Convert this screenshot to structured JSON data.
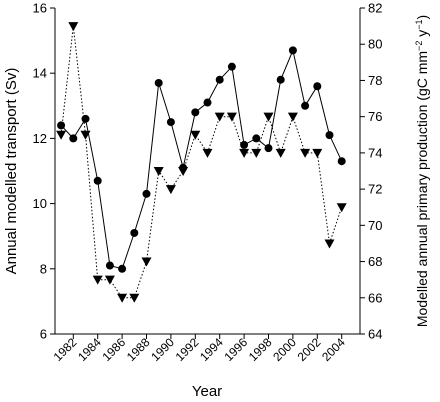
{
  "chart_data": {
    "type": "line",
    "xlabel": "Year",
    "ylabel_left": "Annual modelled transport (Sv)",
    "ylabel_right_parts": [
      "Modelled annual primary production (gC mm",
      "−2",
      " y",
      "−1",
      ")"
    ],
    "xlim": [
      1980.5,
      2005.5
    ],
    "ylim_left": [
      6,
      16
    ],
    "ylim_right": [
      64,
      82
    ],
    "x_ticks": [
      1982,
      1984,
      1986,
      1988,
      1990,
      1992,
      1994,
      1996,
      1998,
      2000,
      2002,
      2004
    ],
    "y_ticks_left": [
      6,
      8,
      10,
      12,
      14,
      16
    ],
    "y_ticks_right": [
      64,
      66,
      68,
      70,
      72,
      74,
      76,
      78,
      80,
      82
    ],
    "grid": false,
    "series": [
      {
        "axis": "left",
        "marker": "circle",
        "line": "solid",
        "x": [
          1981,
          1982,
          1983,
          1984,
          1985,
          1986,
          1987,
          1988,
          1989,
          1990,
          1991,
          1992,
          1993,
          1994,
          1995,
          1996,
          1997,
          1998,
          1999,
          2000,
          2001,
          2002,
          2003,
          2004
        ],
        "values": [
          12.4,
          12.0,
          12.6,
          10.7,
          8.1,
          8.0,
          9.1,
          10.3,
          13.7,
          12.5,
          11.1,
          12.8,
          13.1,
          13.8,
          14.2,
          11.8,
          12.0,
          11.7,
          13.8,
          14.7,
          13.0,
          13.6,
          12.1,
          11.3
        ]
      },
      {
        "axis": "right",
        "marker": "triangle-down",
        "line": "dotted",
        "x": [
          1981,
          1982,
          1983,
          1984,
          1985,
          1986,
          1987,
          1988,
          1989,
          1990,
          1991,
          1992,
          1993,
          1994,
          1995,
          1996,
          1997,
          1998,
          1999,
          2000,
          2001,
          2002,
          2003,
          2004
        ],
        "values": [
          75,
          81,
          75,
          67,
          67,
          66,
          66,
          68,
          73,
          72,
          73,
          75,
          74,
          76,
          76,
          74,
          74,
          76,
          74,
          76,
          74,
          74,
          69,
          71
        ]
      }
    ]
  },
  "colors": {
    "axis": "#000000",
    "series_line": "#000000",
    "marker_fill": "#000000"
  }
}
